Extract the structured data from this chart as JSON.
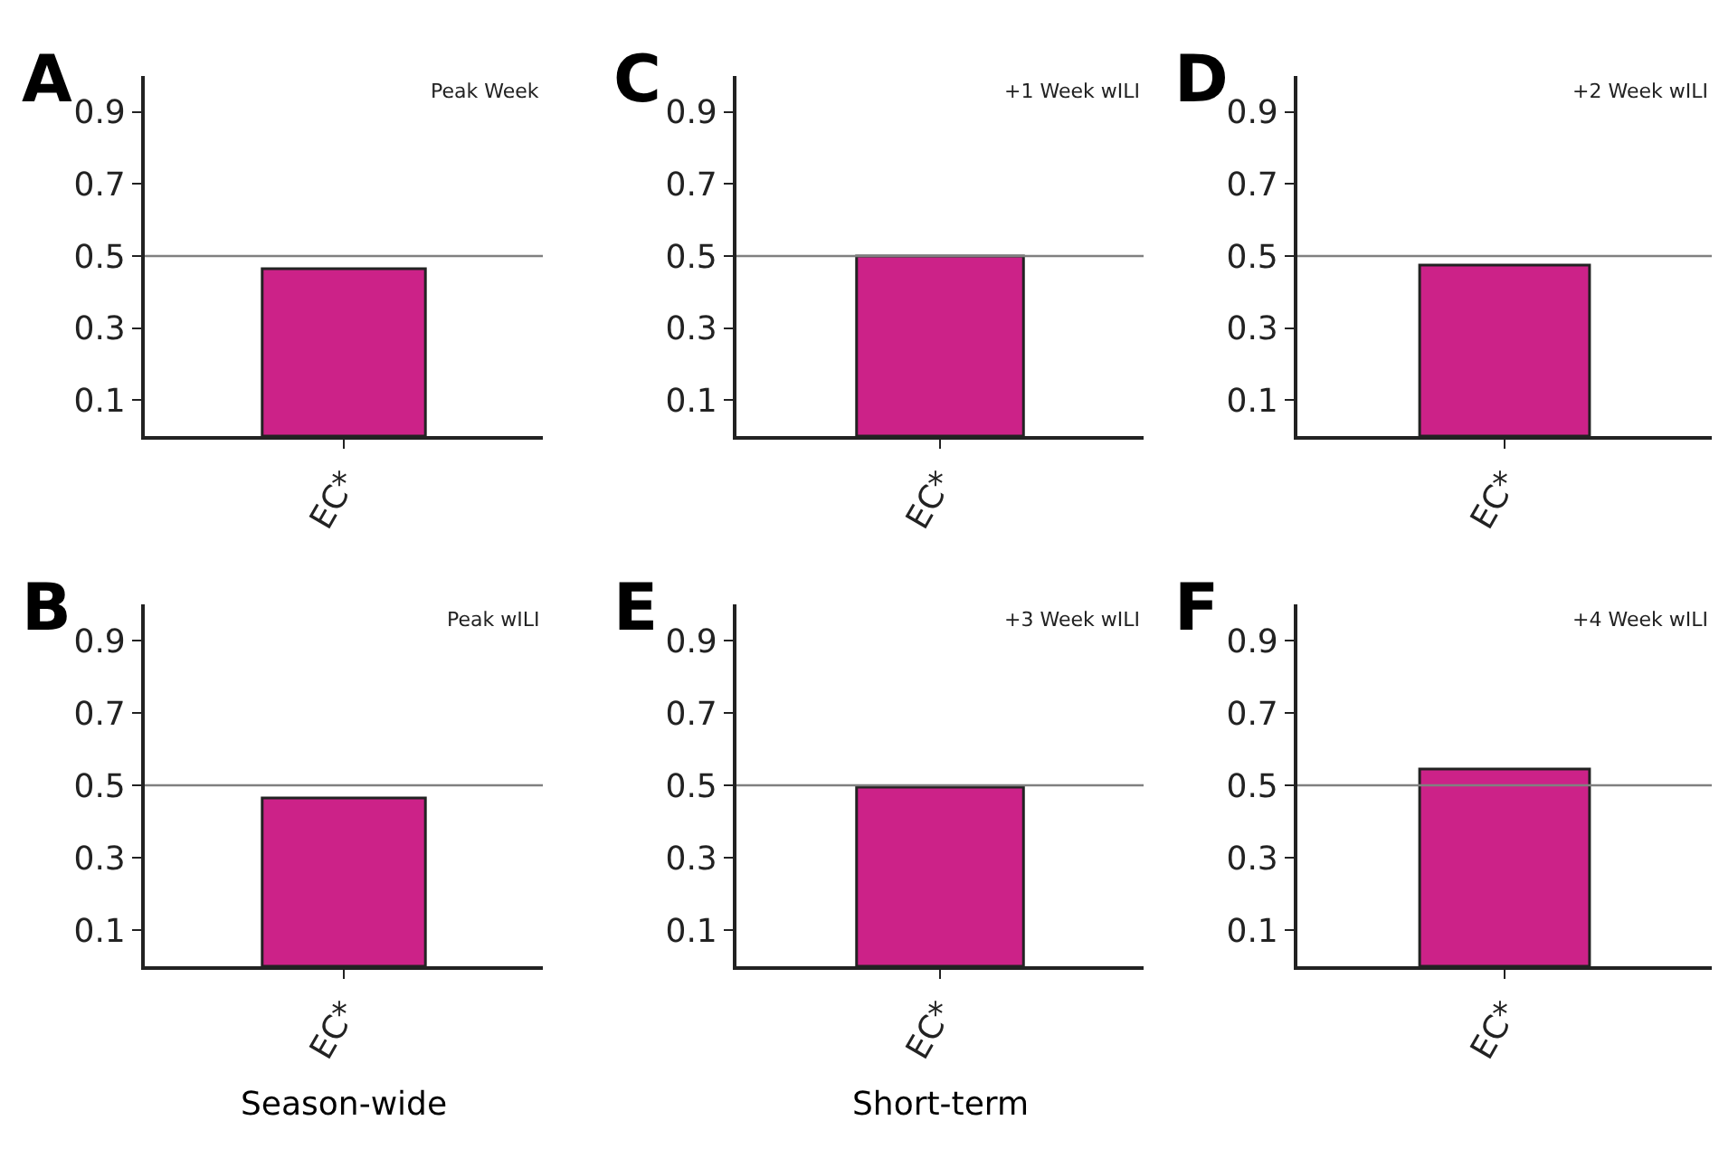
{
  "chart_data": [
    {
      "type": "bar",
      "title": "A",
      "subtitle": "Peak Week",
      "categories": [
        "EC*"
      ],
      "values": [
        0.465
      ],
      "color": "#cc2288",
      "ylim": [
        0,
        1
      ],
      "yticks": [
        0.1,
        0.3,
        0.5,
        0.7,
        0.9
      ],
      "ref_lines": [
        {
          "axis": "y",
          "value": 0.5,
          "color": "#808080"
        }
      ]
    },
    {
      "type": "bar",
      "title": "C",
      "subtitle": "+1 Week wILI",
      "categories": [
        "EC*"
      ],
      "values": [
        0.5
      ],
      "color": "#cc2288",
      "ylim": [
        0,
        1
      ],
      "yticks": [
        0.1,
        0.3,
        0.5,
        0.7,
        0.9
      ],
      "ref_lines": [
        {
          "axis": "y",
          "value": 0.5,
          "color": "#808080"
        }
      ]
    },
    {
      "type": "bar",
      "title": "D",
      "subtitle": "+2 Week wILI",
      "categories": [
        "EC*"
      ],
      "values": [
        0.475
      ],
      "color": "#cc2288",
      "ylim": [
        0,
        1
      ],
      "yticks": [
        0.1,
        0.3,
        0.5,
        0.7,
        0.9
      ],
      "ref_lines": [
        {
          "axis": "y",
          "value": 0.5,
          "color": "#808080"
        }
      ]
    },
    {
      "type": "bar",
      "title": "B",
      "subtitle": "Peak wILI",
      "categories": [
        "EC*"
      ],
      "values": [
        0.465
      ],
      "color": "#cc2288",
      "ylim": [
        0,
        1
      ],
      "yticks": [
        0.1,
        0.3,
        0.5,
        0.7,
        0.9
      ],
      "ref_lines": [
        {
          "axis": "y",
          "value": 0.5,
          "color": "#808080"
        }
      ],
      "annotations": [
        "Season-wide"
      ]
    },
    {
      "type": "bar",
      "title": "E",
      "subtitle": "+3 Week wILI",
      "categories": [
        "EC*"
      ],
      "values": [
        0.495
      ],
      "color": "#cc2288",
      "ylim": [
        0,
        1
      ],
      "yticks": [
        0.1,
        0.3,
        0.5,
        0.7,
        0.9
      ],
      "ref_lines": [
        {
          "axis": "y",
          "value": 0.5,
          "color": "#808080"
        }
      ],
      "annotations": [
        "Short-term"
      ]
    },
    {
      "type": "bar",
      "title": "F",
      "subtitle": "+4 Week wILI",
      "categories": [
        "EC*"
      ],
      "values": [
        0.545
      ],
      "color": "#cc2288",
      "ylim": [
        0,
        1
      ],
      "yticks": [
        0.1,
        0.3,
        0.5,
        0.7,
        0.9
      ],
      "ref_lines": [
        {
          "axis": "y",
          "value": 0.5,
          "color": "#808080"
        }
      ]
    }
  ]
}
